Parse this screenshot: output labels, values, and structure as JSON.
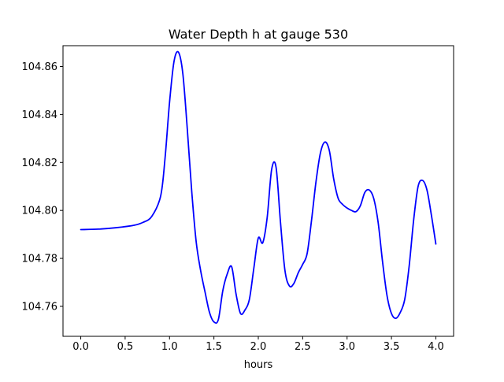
{
  "chart_data": {
    "type": "line",
    "title": "Water Depth h at gauge 530",
    "xlabel": "hours",
    "ylabel": "",
    "xlim": [
      -0.2,
      4.2
    ],
    "ylim": [
      104.7475,
      104.8687
    ],
    "xticks": [
      0.0,
      0.5,
      1.0,
      1.5,
      2.0,
      2.5,
      3.0,
      3.5,
      4.0
    ],
    "xtick_labels": [
      "0.0",
      "0.5",
      "1.0",
      "1.5",
      "2.0",
      "2.5",
      "3.0",
      "3.5",
      "4.0"
    ],
    "yticks": [
      104.76,
      104.78,
      104.8,
      104.82,
      104.84,
      104.86
    ],
    "ytick_labels": [
      "104.76",
      "104.78",
      "104.80",
      "104.82",
      "104.84",
      "104.86"
    ],
    "grid": false,
    "legend": "none",
    "series": [
      {
        "color": "#0000ff",
        "x": [
          0.0,
          0.2,
          0.4,
          0.6,
          0.7,
          0.8,
          0.9,
          0.95,
          1.0,
          1.05,
          1.1,
          1.15,
          1.2,
          1.25,
          1.3,
          1.35,
          1.4,
          1.45,
          1.5,
          1.55,
          1.6,
          1.65,
          1.7,
          1.75,
          1.8,
          1.85,
          1.9,
          1.95,
          2.0,
          2.05,
          2.1,
          2.15,
          2.2,
          2.25,
          2.3,
          2.35,
          2.4,
          2.45,
          2.5,
          2.55,
          2.6,
          2.65,
          2.7,
          2.75,
          2.8,
          2.85,
          2.9,
          2.95,
          3.0,
          3.05,
          3.1,
          3.15,
          3.2,
          3.25,
          3.3,
          3.35,
          3.4,
          3.45,
          3.5,
          3.55,
          3.6,
          3.65,
          3.7,
          3.75,
          3.8,
          3.85,
          3.9,
          3.95,
          4.0
        ],
        "y": [
          104.792,
          104.7922,
          104.7928,
          104.7938,
          104.795,
          104.7975,
          104.806,
          104.822,
          104.845,
          104.862,
          104.866,
          104.857,
          104.834,
          104.808,
          104.787,
          104.775,
          104.766,
          104.7575,
          104.7535,
          104.7545,
          104.7665,
          104.7735,
          104.7765,
          104.765,
          104.757,
          104.7585,
          104.763,
          104.776,
          104.7885,
          104.7865,
          104.797,
          104.817,
          104.818,
          104.795,
          104.775,
          104.7685,
          104.7695,
          104.774,
          104.7775,
          104.782,
          104.796,
          104.812,
          104.824,
          104.8285,
          104.825,
          104.813,
          104.805,
          104.8025,
          104.801,
          104.8,
          104.7995,
          104.802,
          104.8075,
          104.8085,
          104.805,
          104.795,
          104.7785,
          104.7645,
          104.757,
          104.755,
          104.7575,
          104.763,
          104.777,
          104.796,
          104.81,
          104.8125,
          104.8085,
          104.798,
          104.786
        ]
      }
    ]
  }
}
